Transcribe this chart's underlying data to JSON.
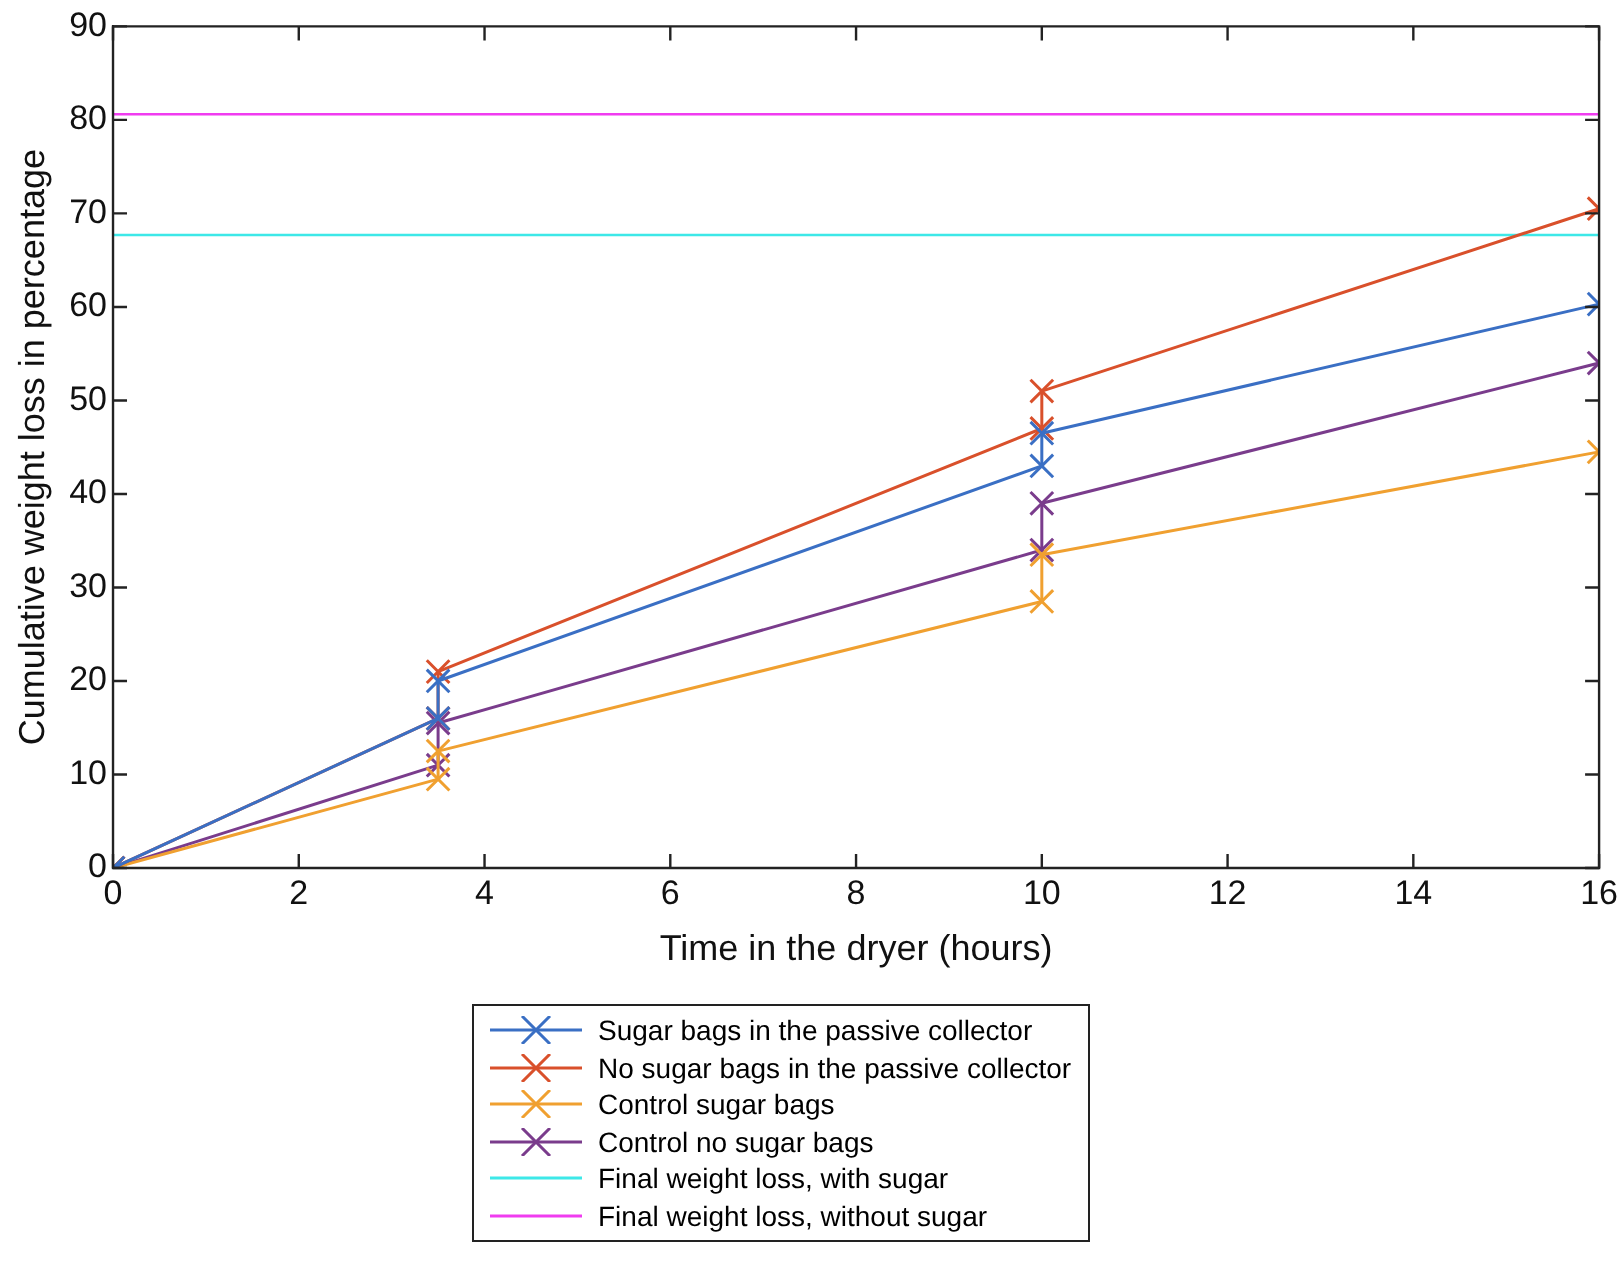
{
  "chart_data": {
    "type": "line",
    "xlabel": "Time in the dryer (hours)",
    "ylabel": "Cumulative weight loss in percentage",
    "series": [
      {
        "name": "Sugar bags in the passive collector",
        "color": "#3a6fc4",
        "x": [
          0,
          3.5,
          3.5,
          10,
          10,
          16
        ],
        "values": [
          0,
          16,
          20,
          43,
          46.5,
          60.3
        ]
      },
      {
        "name": "No sugar bags in the passive collector",
        "color": "#d9502b",
        "x": [
          0,
          3.5,
          3.5,
          10,
          10,
          16
        ],
        "values": [
          0,
          16,
          21,
          47,
          51,
          70.5
        ]
      },
      {
        "name": "Control sugar bags",
        "color": "#f0a030",
        "x": [
          0,
          3.5,
          3.5,
          10,
          10,
          16
        ],
        "values": [
          0,
          9.5,
          12.5,
          28.5,
          33.5,
          44.5
        ]
      },
      {
        "name": "Control no sugar bags",
        "color": "#7a3c8c",
        "x": [
          0,
          3.5,
          3.5,
          10,
          10,
          16
        ],
        "values": [
          0,
          11,
          15.5,
          34,
          39,
          54
        ]
      }
    ],
    "ref_lines": [
      {
        "axis": "y",
        "value": 67.7,
        "label": "Final weight loss, with sugar",
        "color": "#3de8e8"
      },
      {
        "axis": "y",
        "value": 80.6,
        "label": "Final weight loss, without sugar",
        "color": "#f03cf0"
      }
    ],
    "xlim": [
      0,
      16
    ],
    "xticks": [
      0,
      2,
      4,
      6,
      8,
      10,
      12,
      14,
      16
    ],
    "ylim": [
      0,
      90
    ],
    "yticks": [
      0,
      10,
      20,
      30,
      40,
      50,
      60,
      70,
      80,
      90
    ],
    "grid": false,
    "legend": "bottom",
    "marker": "cross",
    "line_style": "solid"
  }
}
